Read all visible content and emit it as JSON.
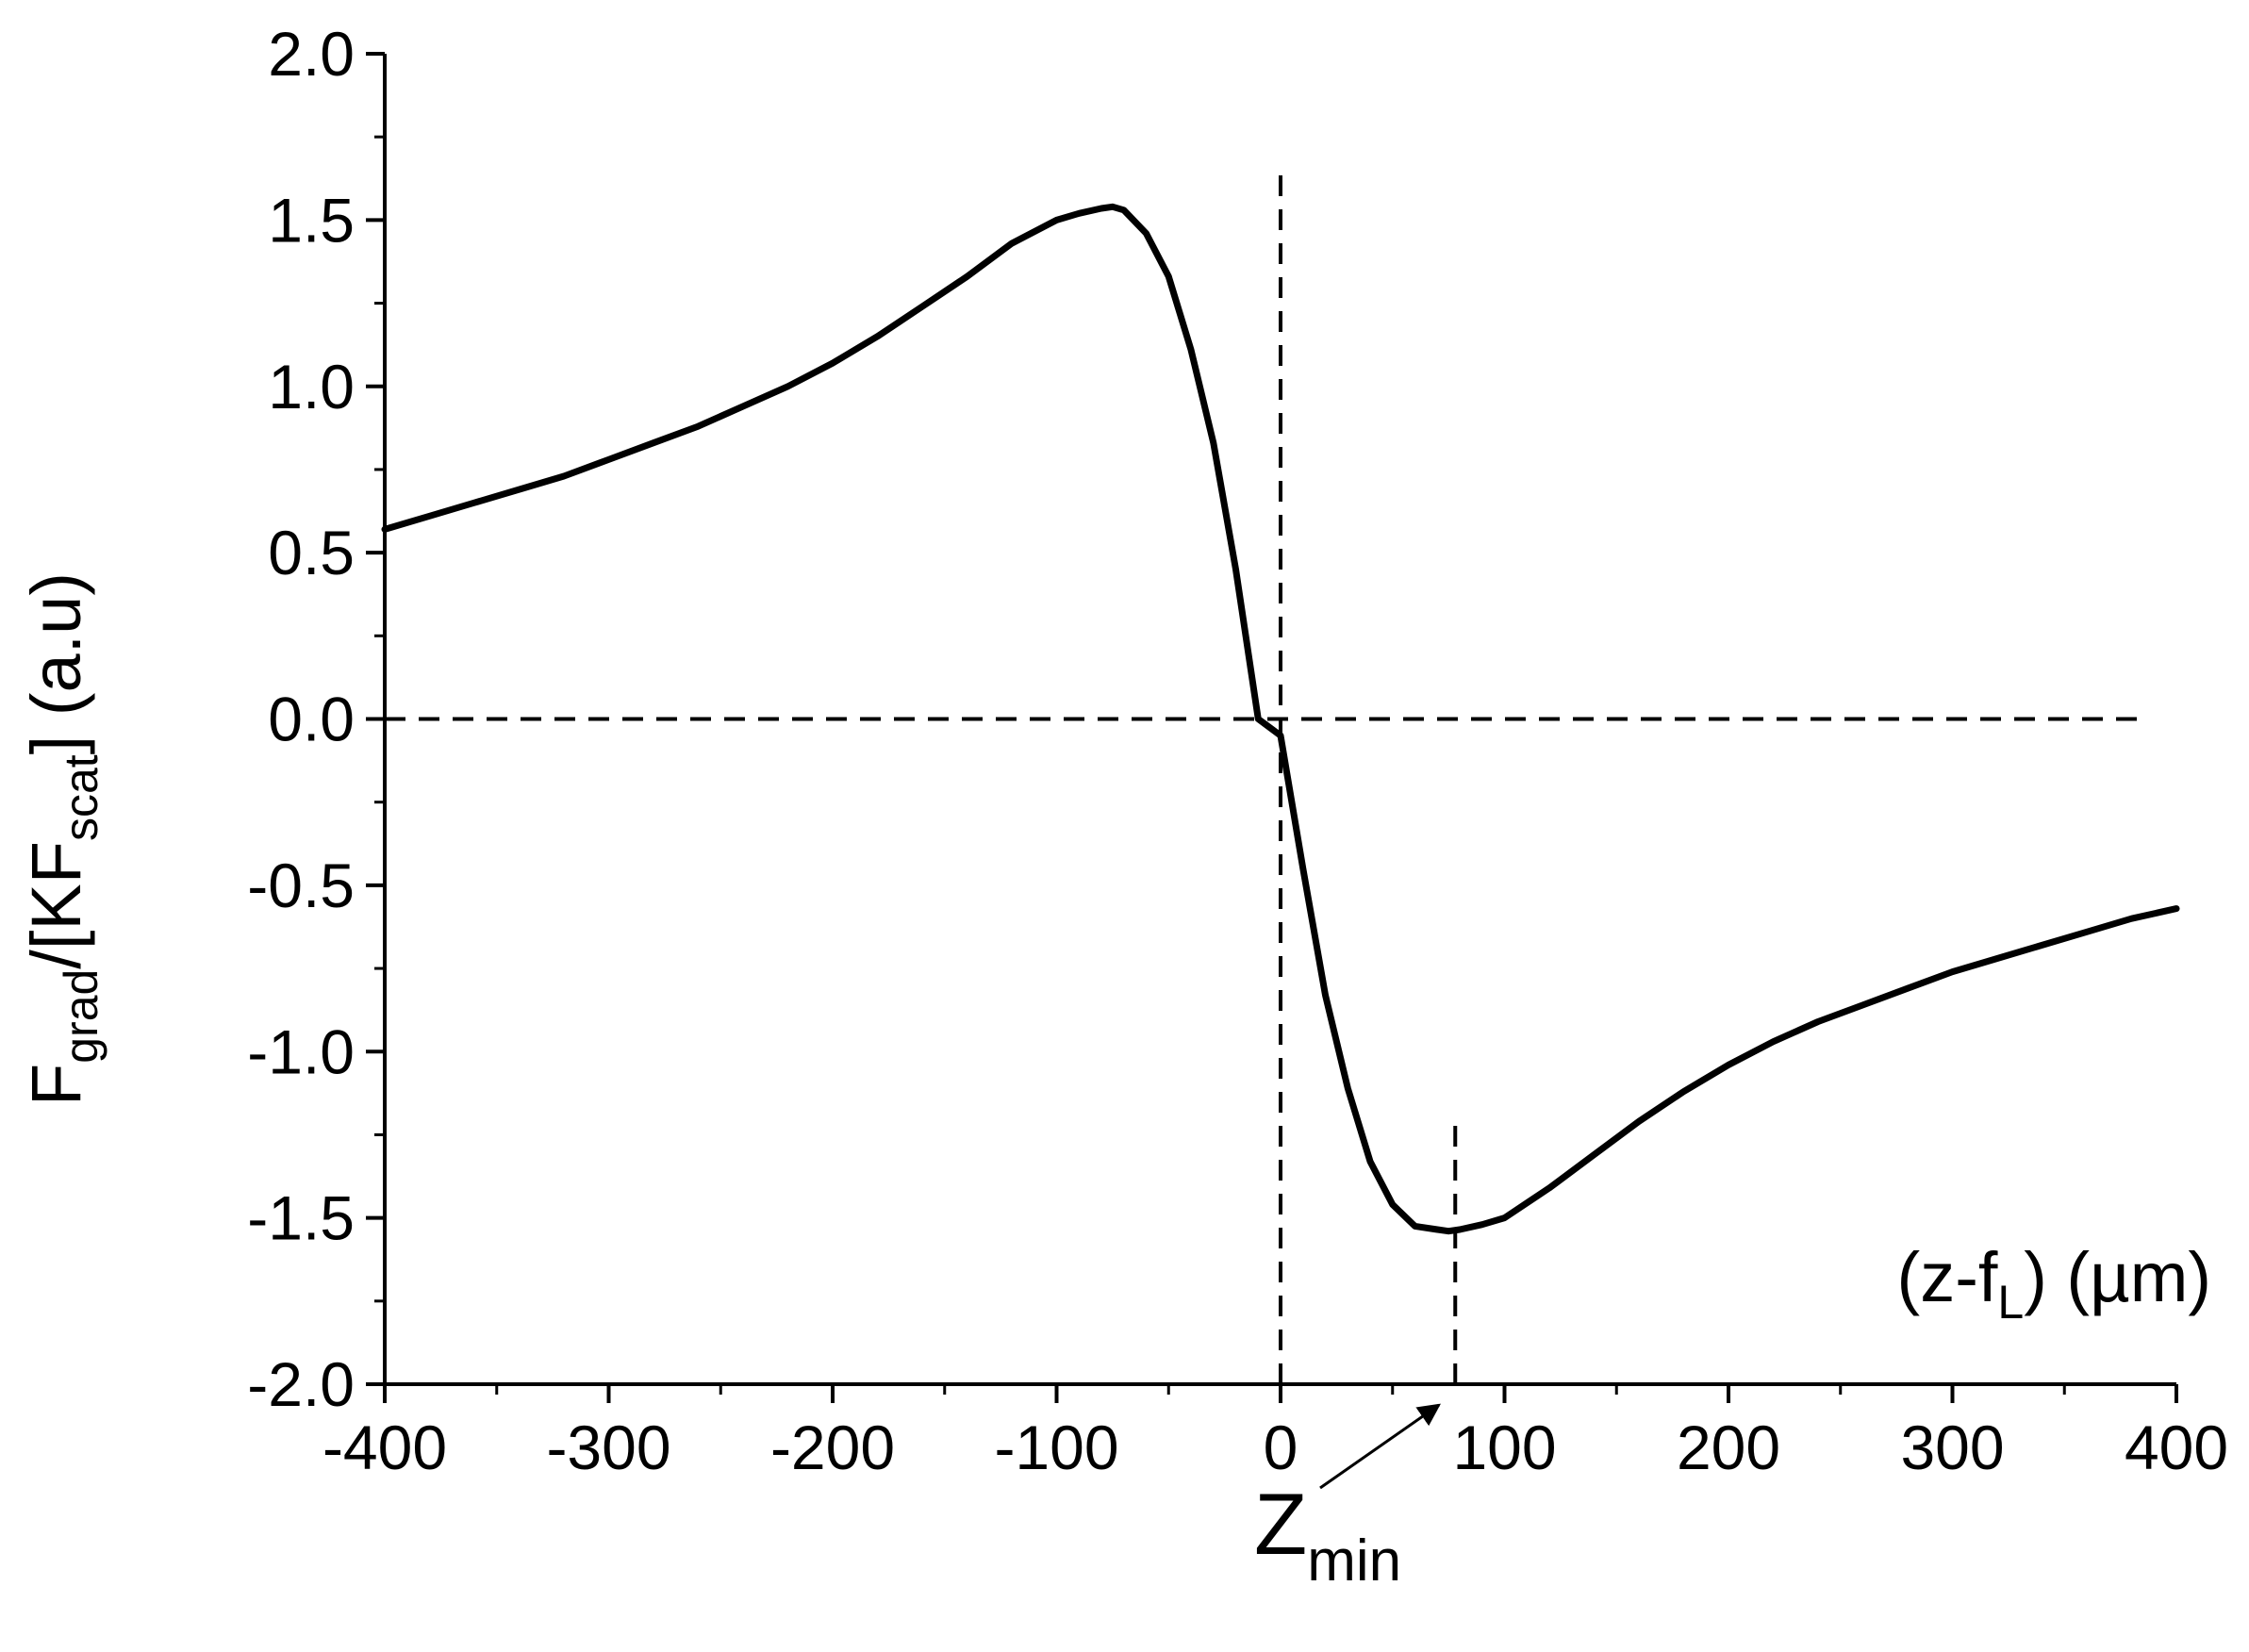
{
  "chart_data": {
    "type": "line",
    "title": "",
    "ylabel": {
      "parts": [
        {
          "text": "F",
          "role": "main"
        },
        {
          "text": "grad",
          "role": "sub"
        },
        {
          "text": "/[KF",
          "role": "main"
        },
        {
          "text": "scat",
          "role": "sub"
        },
        {
          "text": "]  (a.u)",
          "role": "main"
        }
      ]
    },
    "xlabel": {
      "parts": [
        {
          "text": "(z-f",
          "role": "main"
        },
        {
          "text": "L",
          "role": "sub"
        },
        {
          "text": ") (µm)",
          "role": "main"
        }
      ]
    },
    "xlim": [
      -400,
      400
    ],
    "ylim": [
      -2.0,
      2.0
    ],
    "x_ticks": [
      -400,
      -300,
      -200,
      -100,
      0,
      100,
      200,
      300,
      400
    ],
    "x_tick_labels": [
      "-400",
      "-300",
      "-200",
      "-100",
      "0",
      "100",
      "200",
      "300",
      "400"
    ],
    "y_ticks": [
      -2.0,
      -1.5,
      -1.0,
      -0.5,
      0.0,
      0.5,
      1.0,
      1.5,
      2.0
    ],
    "y_tick_labels": [
      "-2.0",
      "-1.5",
      "-1.0",
      "-0.5",
      "0.0",
      "0.5",
      "1.0",
      "1.5",
      "2.0"
    ],
    "grid": false,
    "series": [
      {
        "style": "solid",
        "x": [
          -400,
          -380,
          -360,
          -340,
          -320,
          -300,
          -280,
          -260,
          -240,
          -220,
          -200,
          -180,
          -160,
          -140,
          -120,
          -100,
          -90,
          -80,
          -75,
          -70,
          -60,
          -50,
          -40,
          -30,
          -20,
          -10,
          0,
          10,
          20,
          30,
          40,
          50,
          60,
          70,
          75,
          80,
          90,
          100,
          120,
          140,
          160,
          180,
          200,
          220,
          240,
          260,
          280,
          300,
          320,
          340,
          360,
          380,
          400
        ],
        "y": [
          0.57,
          0.61,
          0.65,
          0.69,
          0.73,
          0.78,
          0.83,
          0.88,
          0.94,
          1.0,
          1.07,
          1.15,
          1.24,
          1.33,
          1.43,
          1.5,
          1.52,
          1.535,
          1.54,
          1.53,
          1.46,
          1.33,
          1.11,
          0.83,
          0.45,
          0.0,
          -0.05,
          -0.45,
          -0.83,
          -1.11,
          -1.33,
          -1.46,
          -1.525,
          -1.535,
          -1.54,
          -1.535,
          -1.52,
          -1.5,
          -1.41,
          -1.31,
          -1.21,
          -1.12,
          -1.04,
          -0.97,
          -0.91,
          -0.86,
          -0.81,
          -0.76,
          -0.72,
          -0.68,
          -0.64,
          -0.6,
          -0.57
        ]
      }
    ],
    "reference_lines": [
      {
        "orientation": "horizontal",
        "value": 0.0,
        "style": "dashed",
        "from": -400,
        "to": 385
      },
      {
        "orientation": "vertical",
        "value": 0,
        "style": "dashed",
        "from": -2.0,
        "to": 1.65
      },
      {
        "orientation": "vertical",
        "value": 78,
        "style": "dashed",
        "from": -2.0,
        "to": -1.22
      }
    ],
    "annotations": [
      {
        "label_parts": [
          {
            "text": "Z",
            "role": "main"
          },
          {
            "text": "min",
            "role": "sub"
          }
        ],
        "points_to_x": 75
      }
    ]
  }
}
